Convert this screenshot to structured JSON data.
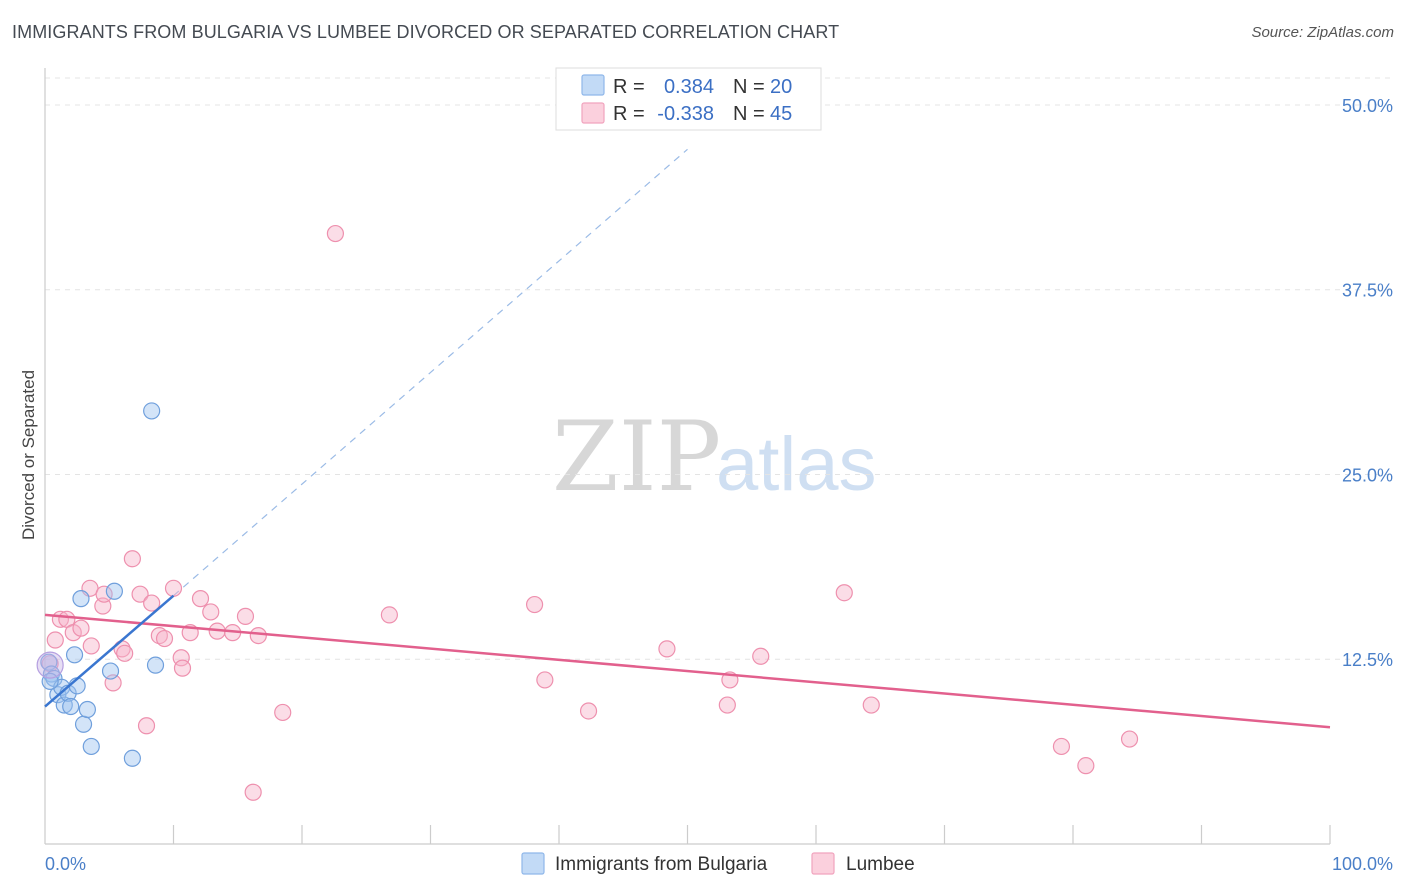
{
  "header": {
    "title": "IMMIGRANTS FROM BULGARIA VS LUMBEE DIVORCED OR SEPARATED CORRELATION CHART",
    "source": "Source: ZipAtlas.com"
  },
  "watermark": {
    "zip": "ZIP",
    "atlas": "atlas"
  },
  "legend": {
    "rows": [
      {
        "r_label": "R =",
        "r_value": "0.384",
        "n_label": "N =",
        "n_value": "20",
        "color": "#9ec3f0"
      },
      {
        "r_label": "R =",
        "r_value": "-0.338",
        "n_label": "N =",
        "n_value": "45",
        "color": "#f7b3c9"
      }
    ]
  },
  "chart_data": {
    "type": "scatter",
    "title": "IMMIGRANTS FROM BULGARIA VS LUMBEE DIVORCED OR SEPARATED CORRELATION CHART",
    "xlabel": "",
    "ylabel": "Divorced or Separated",
    "xlim": [
      0,
      100
    ],
    "ylim": [
      0,
      52.5
    ],
    "x_tick_labels": [
      "0.0%",
      "100.0%"
    ],
    "y_ticks": [
      12.5,
      25.0,
      37.5,
      50.0
    ],
    "y_tick_labels": [
      "12.5%",
      "25.0%",
      "37.5%",
      "50.0%"
    ],
    "grid": true,
    "legend_position": "top-center",
    "series": [
      {
        "name": "Immigrants from Bulgaria",
        "color": "#9ec3f0",
        "stroke": "#6f9fdc",
        "line_color": "#3a76d0",
        "trend": {
          "x0": 0,
          "y0": 9.3,
          "x1": 10,
          "y1": 16.8,
          "dashed_to_x": 50,
          "dashed_to_y": 47.0
        },
        "points": [
          [
            0.3,
            12.3
          ],
          [
            0.5,
            11.5
          ],
          [
            0.7,
            11.2
          ],
          [
            1.0,
            10.1
          ],
          [
            1.3,
            10.6
          ],
          [
            1.5,
            9.4
          ],
          [
            1.8,
            10.2
          ],
          [
            2.0,
            9.3
          ],
          [
            2.3,
            12.8
          ],
          [
            2.5,
            10.7
          ],
          [
            2.8,
            16.6
          ],
          [
            3.0,
            8.1
          ],
          [
            3.3,
            9.1
          ],
          [
            3.6,
            6.6
          ],
          [
            5.1,
            11.7
          ],
          [
            5.4,
            17.1
          ],
          [
            6.8,
            5.8
          ],
          [
            8.3,
            29.3
          ],
          [
            8.6,
            12.1
          ],
          [
            0.4,
            11.0
          ]
        ]
      },
      {
        "name": "Lumbee",
        "color": "#f7b3c9",
        "stroke": "#ee90ae",
        "line_color": "#e2608d",
        "trend": {
          "x0": 0,
          "y0": 15.5,
          "x1": 100,
          "y1": 7.9
        },
        "points": [
          [
            0.4,
            12.2
          ],
          [
            0.8,
            13.8
          ],
          [
            1.2,
            15.2
          ],
          [
            1.7,
            15.2
          ],
          [
            2.2,
            14.3
          ],
          [
            2.8,
            14.6
          ],
          [
            3.6,
            13.4
          ],
          [
            3.5,
            17.3
          ],
          [
            4.5,
            16.1
          ],
          [
            4.6,
            16.9
          ],
          [
            5.3,
            10.9
          ],
          [
            6.0,
            13.2
          ],
          [
            6.2,
            12.9
          ],
          [
            6.8,
            19.3
          ],
          [
            7.4,
            16.9
          ],
          [
            7.9,
            8.0
          ],
          [
            8.3,
            16.3
          ],
          [
            8.9,
            14.1
          ],
          [
            9.3,
            13.9
          ],
          [
            10.0,
            17.3
          ],
          [
            10.6,
            12.6
          ],
          [
            10.7,
            11.9
          ],
          [
            11.3,
            14.3
          ],
          [
            12.1,
            16.6
          ],
          [
            12.9,
            15.7
          ],
          [
            13.4,
            14.4
          ],
          [
            14.6,
            14.3
          ],
          [
            15.6,
            15.4
          ],
          [
            16.2,
            3.5
          ],
          [
            16.6,
            14.1
          ],
          [
            18.5,
            8.9
          ],
          [
            22.6,
            41.3
          ],
          [
            26.8,
            15.5
          ],
          [
            38.1,
            16.2
          ],
          [
            38.9,
            11.1
          ],
          [
            42.3,
            9.0
          ],
          [
            48.4,
            13.2
          ],
          [
            53.3,
            11.1
          ],
          [
            53.1,
            9.4
          ],
          [
            55.7,
            12.7
          ],
          [
            62.2,
            17.0
          ],
          [
            64.3,
            9.4
          ],
          [
            79.1,
            6.6
          ],
          [
            81.0,
            5.3
          ],
          [
            84.4,
            7.1
          ]
        ]
      }
    ]
  },
  "bottom_legend": {
    "items": [
      {
        "label": "Immigrants from Bulgaria",
        "color": "#c2daf6",
        "stroke": "#8fb7ea"
      },
      {
        "label": "Lumbee",
        "color": "#fbd0dd",
        "stroke": "#f1a4be"
      }
    ]
  }
}
